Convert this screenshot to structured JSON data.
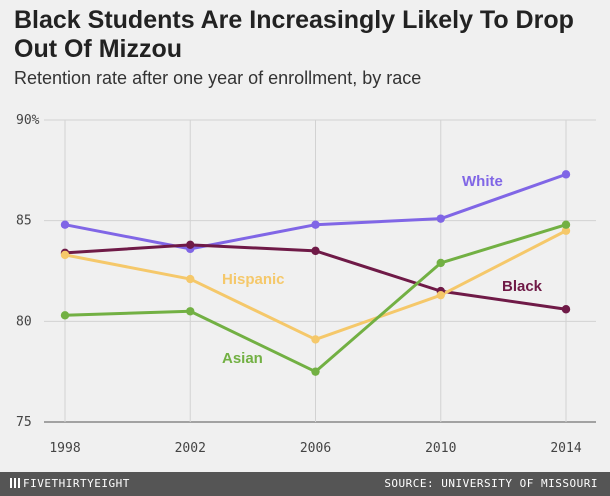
{
  "chart_data": {
    "type": "line",
    "title": "Black Students Are Increasingly Likely To Drop Out Of Mizzou",
    "subtitle": "Retention rate after one year of enrollment, by race",
    "x": [
      "1998",
      "2002",
      "2006",
      "2010",
      "2014"
    ],
    "y_ticks": [
      "90%",
      "85",
      "80",
      "75"
    ],
    "y_tick_values": [
      90,
      85,
      80,
      75
    ],
    "ylim": [
      74.5,
      90.5
    ],
    "grid": true,
    "series": [
      {
        "name": "White",
        "color": "#8066e6",
        "values": [
          84.8,
          83.6,
          84.8,
          85.1,
          87.3
        ]
      },
      {
        "name": "Black",
        "color": "#6f1a47",
        "values": [
          83.4,
          83.8,
          83.5,
          81.5,
          80.6
        ]
      },
      {
        "name": "Hispanic",
        "color": "#f5c86a",
        "values": [
          83.3,
          82.1,
          79.1,
          81.3,
          84.5
        ]
      },
      {
        "name": "Asian",
        "color": "#72b043",
        "values": [
          80.3,
          80.5,
          77.5,
          82.9,
          84.8
        ]
      }
    ]
  },
  "footer": {
    "brand": "FIVETHIRTYEIGHT",
    "source": "SOURCE: UNIVERSITY OF MISSOURI"
  }
}
